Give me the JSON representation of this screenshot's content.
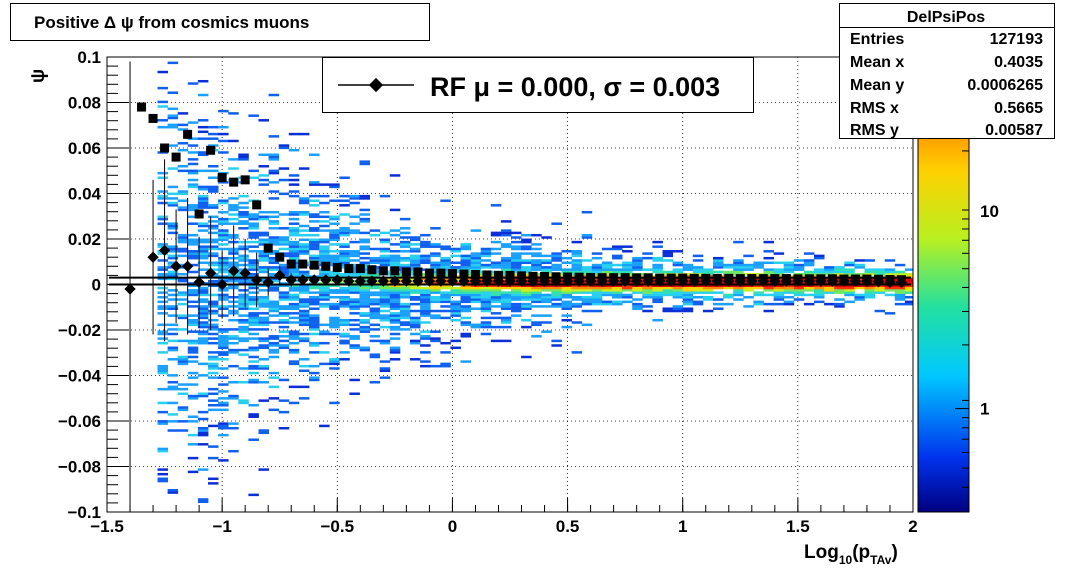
{
  "title": "Positive Δ ψ from cosmics muons",
  "stats": {
    "name": "DelPsiPos",
    "rows": [
      {
        "label": "Entries",
        "value": "127193"
      },
      {
        "label": "Mean x",
        "value": "0.4035"
      },
      {
        "label": "Mean y",
        "value": "0.0006265"
      },
      {
        "label": "RMS x",
        "value": "0.5665"
      },
      {
        "label": "RMS y",
        "value": "0.00587"
      }
    ]
  },
  "legend": {
    "text": "RF μ =  0.000, σ =   0.003"
  },
  "colors": {
    "profile": "#000000",
    "palette": "rainbow"
  },
  "chart_data": {
    "type": "heatmap",
    "title": "Positive Δ ψ from cosmics muons",
    "xlabel": "Log10(pTAv)",
    "xlabel_parts": {
      "main": "Log",
      "sub1": "10",
      "mid": "(p",
      "sub2": "TAv",
      "end": ")"
    },
    "ylabel": "ψ",
    "xlim": [
      -1.5,
      2
    ],
    "ylim": [
      -0.1,
      0.1
    ],
    "zscale": "log",
    "grid": true,
    "legend_position": "top-center",
    "x_ticks": [
      {
        "v": -1.5,
        "label": "−1.5"
      },
      {
        "v": -1,
        "label": "−1"
      },
      {
        "v": -0.5,
        "label": "−0.5"
      },
      {
        "v": 0,
        "label": "0"
      },
      {
        "v": 0.5,
        "label": "0.5"
      },
      {
        "v": 1,
        "label": "1"
      },
      {
        "v": 1.5,
        "label": "1.5"
      },
      {
        "v": 2,
        "label": "2"
      }
    ],
    "y_ticks": [
      {
        "v": 0.1,
        "label": "0.1"
      },
      {
        "v": 0.08,
        "label": "0.08"
      },
      {
        "v": 0.06,
        "label": "0.06"
      },
      {
        "v": 0.04,
        "label": "0.04"
      },
      {
        "v": 0.02,
        "label": "0.02"
      },
      {
        "v": 0,
        "label": "0"
      },
      {
        "v": -0.02,
        "label": "−0.02"
      },
      {
        "v": -0.04,
        "label": "−0.04"
      },
      {
        "v": -0.06,
        "label": "−0.06"
      },
      {
        "v": -0.08,
        "label": "−0.08"
      },
      {
        "v": -0.1,
        "label": "−0.1"
      }
    ],
    "z_ticks": [
      {
        "v": 1,
        "label": "1"
      },
      {
        "v": 10,
        "label": "10"
      }
    ],
    "zlim": [
      0.3,
      60
    ],
    "mean_profile": [
      {
        "x": -1.35,
        "y": 0.078
      },
      {
        "x": -1.3,
        "y": 0.073
      },
      {
        "x": -1.25,
        "y": 0.06
      },
      {
        "x": -1.2,
        "y": 0.056
      },
      {
        "x": -1.15,
        "y": 0.066
      },
      {
        "x": -1.1,
        "y": 0.031
      },
      {
        "x": -1.05,
        "y": 0.059
      },
      {
        "x": -1.0,
        "y": 0.047
      },
      {
        "x": -0.95,
        "y": 0.045
      },
      {
        "x": -0.9,
        "y": 0.046
      },
      {
        "x": -0.85,
        "y": 0.035
      },
      {
        "x": -0.8,
        "y": 0.016
      },
      {
        "x": -0.75,
        "y": 0.012
      },
      {
        "x": -0.7,
        "y": 0.009
      },
      {
        "x": -0.65,
        "y": 0.009
      },
      {
        "x": -0.6,
        "y": 0.0085
      },
      {
        "x": -0.55,
        "y": 0.008
      },
      {
        "x": -0.5,
        "y": 0.0075
      },
      {
        "x": -0.45,
        "y": 0.007
      },
      {
        "x": -0.4,
        "y": 0.007
      },
      {
        "x": -0.35,
        "y": 0.0065
      },
      {
        "x": -0.3,
        "y": 0.006
      },
      {
        "x": -0.25,
        "y": 0.006
      },
      {
        "x": -0.2,
        "y": 0.0055
      },
      {
        "x": -0.15,
        "y": 0.0055
      },
      {
        "x": -0.1,
        "y": 0.005
      },
      {
        "x": -0.05,
        "y": 0.005
      },
      {
        "x": 0.0,
        "y": 0.0048
      },
      {
        "x": 0.05,
        "y": 0.0046
      },
      {
        "x": 0.1,
        "y": 0.0044
      },
      {
        "x": 0.15,
        "y": 0.0042
      },
      {
        "x": 0.2,
        "y": 0.004
      },
      {
        "x": 0.25,
        "y": 0.004
      },
      {
        "x": 0.3,
        "y": 0.0038
      },
      {
        "x": 0.35,
        "y": 0.0036
      },
      {
        "x": 0.4,
        "y": 0.0035
      },
      {
        "x": 0.45,
        "y": 0.0034
      },
      {
        "x": 0.5,
        "y": 0.0033
      },
      {
        "x": 0.55,
        "y": 0.0032
      },
      {
        "x": 0.6,
        "y": 0.0031
      },
      {
        "x": 0.65,
        "y": 0.003
      },
      {
        "x": 0.7,
        "y": 0.003
      },
      {
        "x": 0.75,
        "y": 0.003
      },
      {
        "x": 0.8,
        "y": 0.0029
      },
      {
        "x": 0.85,
        "y": 0.0029
      },
      {
        "x": 0.9,
        "y": 0.0028
      },
      {
        "x": 0.95,
        "y": 0.0028
      },
      {
        "x": 1.0,
        "y": 0.0028
      },
      {
        "x": 1.05,
        "y": 0.0027
      },
      {
        "x": 1.1,
        "y": 0.0027
      },
      {
        "x": 1.15,
        "y": 0.0027
      },
      {
        "x": 1.2,
        "y": 0.0027
      },
      {
        "x": 1.25,
        "y": 0.0026
      },
      {
        "x": 1.3,
        "y": 0.0026
      },
      {
        "x": 1.35,
        "y": 0.0026
      },
      {
        "x": 1.4,
        "y": 0.0026
      },
      {
        "x": 1.45,
        "y": 0.0026
      },
      {
        "x": 1.5,
        "y": 0.0025
      },
      {
        "x": 1.55,
        "y": 0.0025
      },
      {
        "x": 1.6,
        "y": 0.0025
      },
      {
        "x": 1.65,
        "y": 0.0025
      },
      {
        "x": 1.7,
        "y": 0.0024
      },
      {
        "x": 1.75,
        "y": 0.0024
      },
      {
        "x": 1.8,
        "y": 0.0024
      },
      {
        "x": 1.85,
        "y": 0.0023
      },
      {
        "x": 1.9,
        "y": 0.0022
      },
      {
        "x": 1.95,
        "y": 0.0021
      }
    ],
    "rf_profile": [
      {
        "x": -1.4,
        "y": -0.002,
        "err": 0.1
      },
      {
        "x": -1.3,
        "y": 0.012,
        "err": 0.034
      },
      {
        "x": -1.25,
        "y": 0.015,
        "err": 0.04
      },
      {
        "x": -1.2,
        "y": 0.008,
        "err": 0.025
      },
      {
        "x": -1.15,
        "y": 0.008,
        "err": 0.03
      },
      {
        "x": -1.1,
        "y": 0.001,
        "err": 0.02
      },
      {
        "x": -1.05,
        "y": 0.005,
        "err": 0.025
      },
      {
        "x": -1.0,
        "y": 0.0,
        "err": 0.015
      },
      {
        "x": -0.95,
        "y": 0.006,
        "err": 0.02
      },
      {
        "x": -0.9,
        "y": 0.005,
        "err": 0.015
      },
      {
        "x": -0.85,
        "y": 0.002,
        "err": 0.012
      },
      {
        "x": -0.8,
        "y": 0.001,
        "err": 0.006
      },
      {
        "x": -0.75,
        "y": 0.004,
        "err": 0.004
      },
      {
        "x": -0.7,
        "y": 0.002,
        "err": 0.003
      },
      {
        "x": -0.65,
        "y": 0.002,
        "err": 0.002
      },
      {
        "x": -0.6,
        "y": 0.002,
        "err": 0.0015
      },
      {
        "x": -0.55,
        "y": 0.002,
        "err": 0.001
      },
      {
        "x": -0.5,
        "y": 0.002,
        "err": 0.001
      },
      {
        "x": -0.45,
        "y": 0.0015,
        "err": 0.001
      },
      {
        "x": -0.4,
        "y": 0.0015,
        "err": 0.001
      },
      {
        "x": -0.35,
        "y": 0.0015,
        "err": 0.001
      },
      {
        "x": -0.3,
        "y": 0.0015,
        "err": 0.001
      },
      {
        "x": -0.25,
        "y": 0.0015,
        "err": 0.001
      },
      {
        "x": -0.2,
        "y": 0.0015,
        "err": 0.001
      },
      {
        "x": -0.15,
        "y": 0.0015,
        "err": 0.001
      },
      {
        "x": -0.1,
        "y": 0.0015,
        "err": 0.001
      },
      {
        "x": -0.05,
        "y": 0.0015,
        "err": 0.001
      },
      {
        "x": 0.0,
        "y": 0.0015,
        "err": 0.001
      },
      {
        "x": 0.05,
        "y": 0.0015,
        "err": 0.001
      },
      {
        "x": 0.1,
        "y": 0.0015,
        "err": 0.001
      },
      {
        "x": 0.15,
        "y": 0.0015,
        "err": 0.001
      },
      {
        "x": 0.2,
        "y": 0.0015,
        "err": 0.001
      },
      {
        "x": 0.25,
        "y": 0.0015,
        "err": 0.001
      },
      {
        "x": 0.3,
        "y": 0.0015,
        "err": 0.001
      },
      {
        "x": 0.35,
        "y": 0.0015,
        "err": 0.001
      },
      {
        "x": 0.4,
        "y": 0.0015,
        "err": 0.001
      },
      {
        "x": 0.45,
        "y": 0.0015,
        "err": 0.001
      },
      {
        "x": 0.5,
        "y": 0.0015,
        "err": 0.001
      },
      {
        "x": 0.55,
        "y": 0.0015,
        "err": 0.001
      },
      {
        "x": 0.6,
        "y": 0.0015,
        "err": 0.001
      },
      {
        "x": 0.65,
        "y": 0.0015,
        "err": 0.001
      },
      {
        "x": 0.7,
        "y": 0.0015,
        "err": 0.001
      },
      {
        "x": 0.75,
        "y": 0.0015,
        "err": 0.001
      },
      {
        "x": 0.8,
        "y": 0.0015,
        "err": 0.001
      },
      {
        "x": 0.85,
        "y": 0.0015,
        "err": 0.001
      },
      {
        "x": 0.9,
        "y": 0.0015,
        "err": 0.001
      },
      {
        "x": 0.95,
        "y": 0.0015,
        "err": 0.001
      },
      {
        "x": 1.0,
        "y": 0.0015,
        "err": 0.001
      },
      {
        "x": 1.05,
        "y": 0.0015,
        "err": 0.001
      },
      {
        "x": 1.1,
        "y": 0.0015,
        "err": 0.001
      },
      {
        "x": 1.15,
        "y": 0.0015,
        "err": 0.001
      },
      {
        "x": 1.2,
        "y": 0.0015,
        "err": 0.001
      },
      {
        "x": 1.25,
        "y": 0.0015,
        "err": 0.001
      },
      {
        "x": 1.3,
        "y": 0.0015,
        "err": 0.001
      },
      {
        "x": 1.35,
        "y": 0.0015,
        "err": 0.001
      },
      {
        "x": 1.4,
        "y": 0.0015,
        "err": 0.001
      },
      {
        "x": 1.45,
        "y": 0.0015,
        "err": 0.001
      },
      {
        "x": 1.5,
        "y": 0.0015,
        "err": 0.001
      },
      {
        "x": 1.55,
        "y": 0.0015,
        "err": 0.001
      },
      {
        "x": 1.6,
        "y": 0.0015,
        "err": 0.001
      },
      {
        "x": 1.65,
        "y": 0.0015,
        "err": 0.001
      },
      {
        "x": 1.7,
        "y": 0.0015,
        "err": 0.001
      },
      {
        "x": 1.75,
        "y": 0.0015,
        "err": 0.001
      },
      {
        "x": 1.8,
        "y": 0.0015,
        "err": 0.001
      },
      {
        "x": 1.85,
        "y": 0.0012,
        "err": 0.001
      },
      {
        "x": 1.9,
        "y": 0.001,
        "err": 0.001
      },
      {
        "x": 1.95,
        "y": 0.001,
        "err": 0.001
      }
    ],
    "rf_fit": {
      "mu": 0.0,
      "sigma": 0.003
    }
  }
}
